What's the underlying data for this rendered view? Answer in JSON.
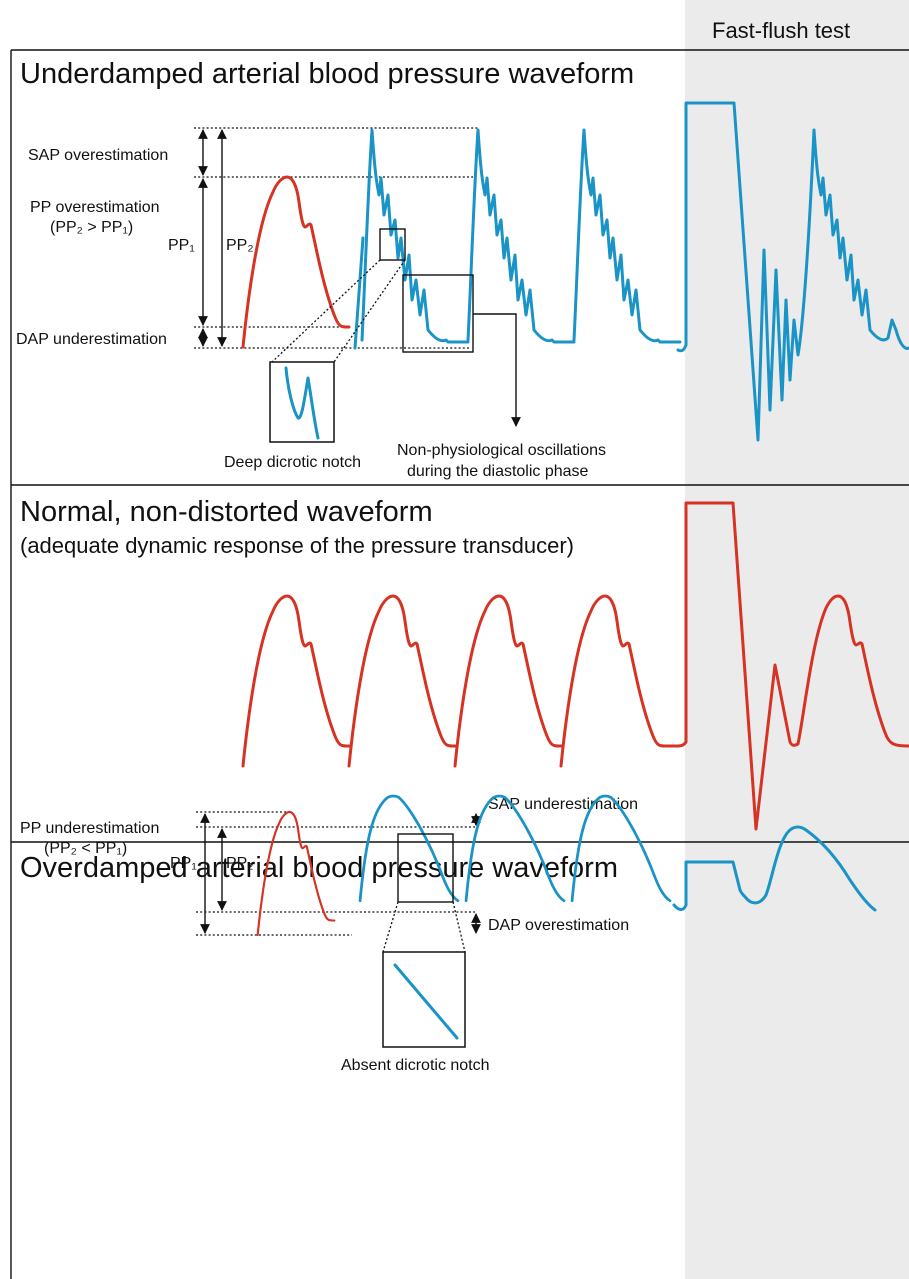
{
  "header": {
    "fast_flush_label": "Fast-flush test"
  },
  "panels": {
    "underdamped": {
      "title": "Underdamped arterial blood pressure waveform",
      "sap": "SAP overestimation",
      "pp_line1": "PP overestimation",
      "pp_line2": "(PP₂ > PP₁)",
      "pp1": "PP₁",
      "pp2": "PP₂",
      "dap": "DAP underestimation",
      "notch": "Deep dicrotic notch",
      "osc_line1": "Non-physiological oscillations",
      "osc_line2": "during the diastolic phase"
    },
    "normal": {
      "title": "Normal, non-distorted waveform",
      "subtitle": "(adequate dynamic response of the pressure transducer)"
    },
    "overdamped": {
      "title": "Overdamped arterial blood pressure waveform",
      "sap": "SAP underestimation",
      "pp_line1": "PP underestimation",
      "pp_line2": "(PP₂ < PP₁)",
      "pp1": "PP₁",
      "pp2": "PP₂",
      "dap": "DAP overestimation",
      "notch": "Absent dicrotic notch"
    }
  },
  "colors": {
    "red": "#d63324",
    "blue": "#1a93c6",
    "shade": "#ebebeb"
  }
}
